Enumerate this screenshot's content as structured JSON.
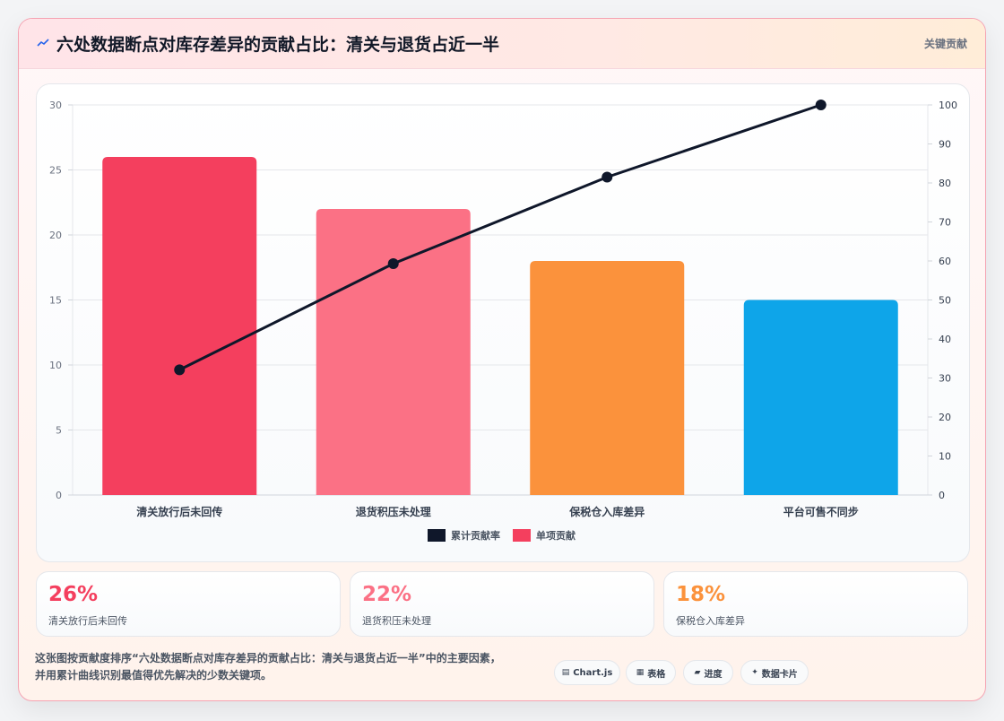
{
  "header": {
    "icon": "trend-line-icon",
    "title": "六处数据断点对库存差异的贡献占比：清关与退货占近一半",
    "right_label": "关键贡献"
  },
  "chart_data": {
    "type": "bar",
    "categories": [
      "清关放行后未回传",
      "退货积压未处理",
      "保税仓入库差异",
      "平台可售不同步"
    ],
    "series": [
      {
        "name": "单项贡献",
        "type": "bar",
        "axis": "left",
        "values": [
          26,
          22,
          18,
          15
        ],
        "colors": [
          "#f43f5e",
          "#fb7185",
          "#fb923c",
          "#0ea5e9"
        ]
      },
      {
        "name": "累计贡献率",
        "type": "line",
        "axis": "right",
        "values": [
          32.1,
          59.3,
          81.5,
          100
        ],
        "color": "#0f172a"
      }
    ],
    "left_axis": {
      "ylim": [
        0,
        30
      ],
      "ticks": [
        0,
        5,
        10,
        15,
        20,
        25,
        30
      ]
    },
    "right_axis": {
      "ylim": [
        0,
        100
      ],
      "ticks": [
        0,
        10,
        20,
        30,
        40,
        50,
        60,
        70,
        80,
        90,
        100
      ]
    },
    "legend": [
      {
        "label": "累计贡献率",
        "color": "#0f172a"
      },
      {
        "label": "单项贡献",
        "color": "#f43f5e"
      }
    ],
    "legend_position": "bottom",
    "grid": true
  },
  "stats": [
    {
      "value": "26%",
      "label": "清关放行后未回传",
      "color": "#f43f5e"
    },
    {
      "value": "22%",
      "label": "退货积压未处理",
      "color": "#fb7185"
    },
    {
      "value": "18%",
      "label": "保税仓入库差异",
      "color": "#fb923c"
    }
  ],
  "footer": {
    "description_line1": "这张图按贡献度排序“六处数据断点对库存差异的贡献占比：清关与退货占近一半”中的主要因素，",
    "description_line2": "并用累计曲线识别最值得优先解决的少数关键项。",
    "pills": [
      {
        "icon": "chart-icon",
        "glyph": "▤",
        "label": "Chart.js"
      },
      {
        "icon": "table-icon",
        "glyph": "▦",
        "label": "表格"
      },
      {
        "icon": "progress-icon",
        "glyph": "▰",
        "label": "进度"
      },
      {
        "icon": "sparkle-icon",
        "glyph": "✦",
        "label": "数据卡片"
      }
    ]
  }
}
